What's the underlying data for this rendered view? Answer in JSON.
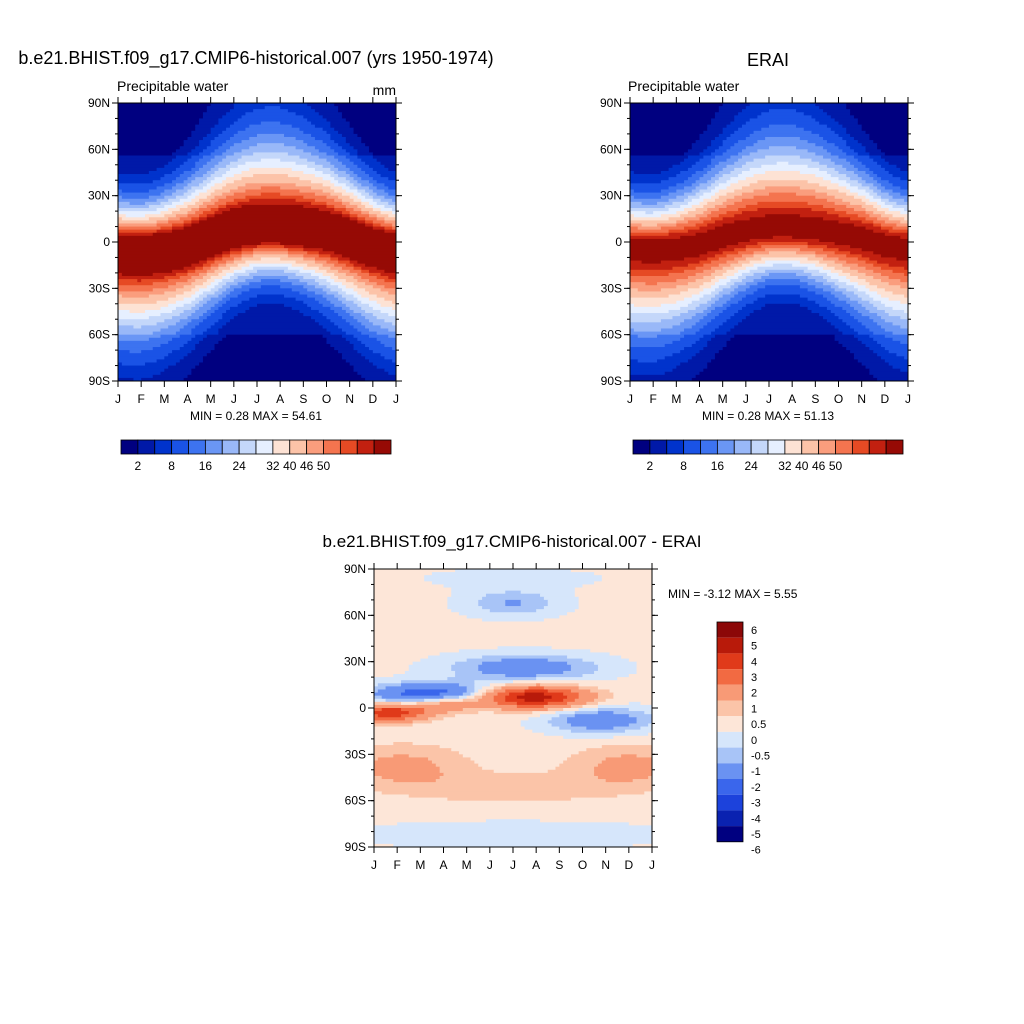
{
  "colors": {
    "model_scale": [
      "#000080",
      "#0019a8",
      "#0033cc",
      "#1a53e6",
      "#3d73f0",
      "#6a96f5",
      "#99b8f8",
      "#c4d7fa",
      "#e6efff",
      "#fde2d4",
      "#fcc3a8",
      "#fa9d7d",
      "#f4744f",
      "#e64a24",
      "#c22010",
      "#960a05"
    ],
    "diff_scale": [
      "#000080",
      "#0a22b0",
      "#1c42dc",
      "#3a66ec",
      "#6a92f2",
      "#a8c4f7",
      "#d6e6fb",
      "#fde6d8",
      "#fbc4a8",
      "#f89a76",
      "#f26a42",
      "#e03a1a",
      "#b81a0a",
      "#8c0808"
    ]
  },
  "panels": {
    "model": {
      "title": "b.e21.BHIST.f09_g17.CMIP6-historical.007 (yrs 1950-1974)",
      "left_label": "Precipitable water",
      "right_label": "mm",
      "stats": "MIN =   0.28 MAX =  54.61"
    },
    "obs": {
      "title": "ERAI",
      "left_label": "Precipitable water",
      "right_label": "",
      "stats": "MIN =   0.28 MAX =  51.13"
    },
    "diff": {
      "title": "b.e21.BHIST.f09_g17.CMIP6-historical.007 - ERAI",
      "stats": "MIN =  -3.12 MAX =   5.55"
    }
  },
  "chart_data": [
    {
      "type": "heatmap",
      "title": "b.e21.BHIST.f09_g17.CMIP6-historical.007 (yrs 1950-1974)",
      "subtitle": "Precipitable water",
      "units": "mm",
      "x": [
        "J",
        "F",
        "M",
        "A",
        "M",
        "J",
        "J",
        "A",
        "S",
        "O",
        "N",
        "D",
        "J"
      ],
      "y_ticks": [
        "90S",
        "60S",
        "30S",
        "0",
        "30N",
        "60N",
        "90N"
      ],
      "ylim": [
        -90,
        90
      ],
      "legend_labels": [
        "2",
        "8",
        "16",
        "24",
        "32",
        "40",
        "46",
        "50"
      ],
      "min": 0.28,
      "max": 54.61,
      "itcz_lat_by_month": [
        -4,
        -5,
        -4,
        -2,
        2,
        6,
        8,
        8,
        7,
        6,
        3,
        -1,
        -4
      ]
    },
    {
      "type": "heatmap",
      "title": "ERAI",
      "subtitle": "Precipitable water",
      "x": [
        "J",
        "F",
        "M",
        "A",
        "M",
        "J",
        "J",
        "A",
        "S",
        "O",
        "N",
        "D",
        "J"
      ],
      "y_ticks": [
        "90S",
        "60S",
        "30S",
        "0",
        "30N",
        "60N",
        "90N"
      ],
      "ylim": [
        -90,
        90
      ],
      "legend_labels": [
        "2",
        "8",
        "16",
        "24",
        "32",
        "40",
        "46",
        "50"
      ],
      "min": 0.28,
      "max": 51.13,
      "itcz_lat_by_month": [
        -3,
        -4,
        -3,
        -1,
        3,
        6,
        8,
        8,
        7,
        5,
        3,
        -1,
        -3
      ]
    },
    {
      "type": "heatmap",
      "title": "b.e21.BHIST.f09_g17.CMIP6-historical.007 - ERAI",
      "x": [
        "J",
        "F",
        "M",
        "A",
        "M",
        "J",
        "J",
        "A",
        "S",
        "O",
        "N",
        "D",
        "J"
      ],
      "y_ticks": [
        "90S",
        "60S",
        "30S",
        "0",
        "30N",
        "60N",
        "90N"
      ],
      "ylim": [
        -90,
        90
      ],
      "legend_labels": [
        "6",
        "5",
        "4",
        "3",
        "2",
        "1",
        "0.5",
        "0",
        "-0.5",
        "-1",
        "-2",
        "-3",
        "-4",
        "-5",
        "-6"
      ],
      "min": -3.12,
      "max": 5.55
    }
  ]
}
